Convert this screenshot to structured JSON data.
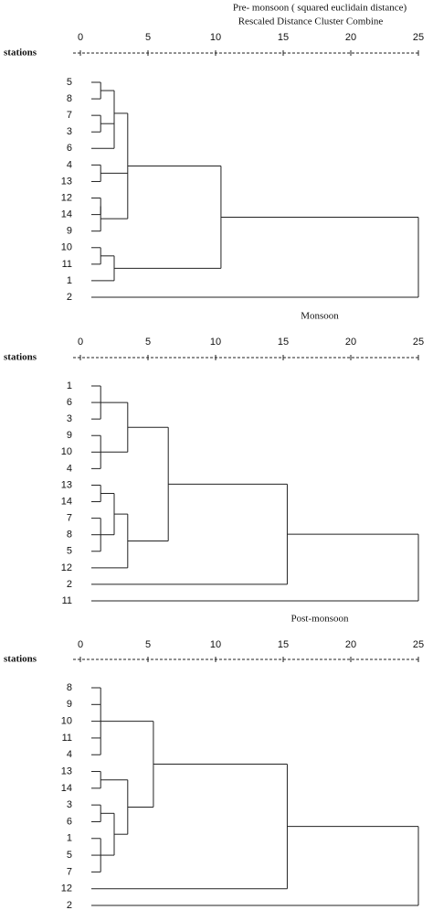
{
  "chart_data": [
    {
      "type": "dendrogram",
      "title": "Pre- monsoon ( squared euclidain distance)",
      "subtitle": "Rescaled Distance Cluster Combine",
      "y_axis_label": "stations",
      "xlim": [
        0,
        25
      ],
      "xticks": [
        0,
        5,
        10,
        15,
        20,
        25
      ],
      "tree": {
        "height": 25,
        "children": [
          {
            "height": 10.4,
            "children": [
              {
                "height": 3.5,
                "children": [
                  {
                    "height": 2.5,
                    "children": [
                      {
                        "height": 1.5,
                        "children": [
                          "5",
                          "8"
                        ]
                      },
                      {
                        "height": 2.5,
                        "children": [
                          {
                            "height": 1.5,
                            "children": [
                              "7",
                              "3"
                            ]
                          },
                          "6"
                        ]
                      }
                    ]
                  },
                  {
                    "height": 1.5,
                    "children": [
                      "4",
                      "13"
                    ]
                  },
                  {
                    "height": 1.5,
                    "children": [
                      {
                        "height": 1.5,
                        "children": [
                          "12",
                          "14"
                        ]
                      },
                      "9"
                    ]
                  }
                ]
              },
              {
                "height": 2.5,
                "children": [
                  {
                    "height": 1.5,
                    "children": [
                      "10",
                      "11"
                    ]
                  },
                  "1"
                ]
              }
            ]
          },
          "2"
        ]
      }
    },
    {
      "type": "dendrogram",
      "title": "Monsoon",
      "y_axis_label": "stations",
      "xlim": [
        0,
        25
      ],
      "xticks": [
        0,
        5,
        10,
        15,
        20,
        25
      ],
      "tree": {
        "height": 25,
        "children": [
          {
            "height": 15.3,
            "children": [
              {
                "height": 6.5,
                "children": [
                  {
                    "height": 3.5,
                    "children": [
                      {
                        "height": 1.5,
                        "children": [
                          "1",
                          "6",
                          "3"
                        ]
                      },
                      {
                        "height": 1.5,
                        "children": [
                          "9",
                          "10",
                          "4"
                        ]
                      }
                    ]
                  },
                  {
                    "height": 3.5,
                    "children": [
                      {
                        "height": 2.5,
                        "children": [
                          {
                            "height": 1.5,
                            "children": [
                              "13",
                              "14"
                            ]
                          },
                          {
                            "height": 1.5,
                            "children": [
                              "7",
                              "8",
                              "5"
                            ]
                          }
                        ]
                      },
                      "12"
                    ]
                  }
                ]
              },
              "2"
            ]
          },
          "11"
        ]
      }
    },
    {
      "type": "dendrogram",
      "title": "Post-monsoon",
      "y_axis_label": "stations",
      "xlim": [
        0,
        25
      ],
      "xticks": [
        0,
        5,
        10,
        15,
        20,
        25
      ],
      "tree": {
        "height": 25,
        "children": [
          {
            "height": 15.3,
            "children": [
              {
                "height": 5.4,
                "children": [
                  {
                    "height": 1.5,
                    "children": [
                      "8",
                      "9",
                      "10",
                      "11",
                      "4"
                    ]
                  },
                  {
                    "height": 3.5,
                    "children": [
                      {
                        "height": 1.5,
                        "children": [
                          "13",
                          "14"
                        ]
                      },
                      {
                        "height": 2.5,
                        "children": [
                          {
                            "height": 1.5,
                            "children": [
                              "3",
                              "6"
                            ]
                          },
                          {
                            "height": 1.5,
                            "children": [
                              "1",
                              "5",
                              "7"
                            ]
                          }
                        ]
                      }
                    ]
                  }
                ]
              },
              "12"
            ]
          },
          "2"
        ]
      }
    }
  ]
}
